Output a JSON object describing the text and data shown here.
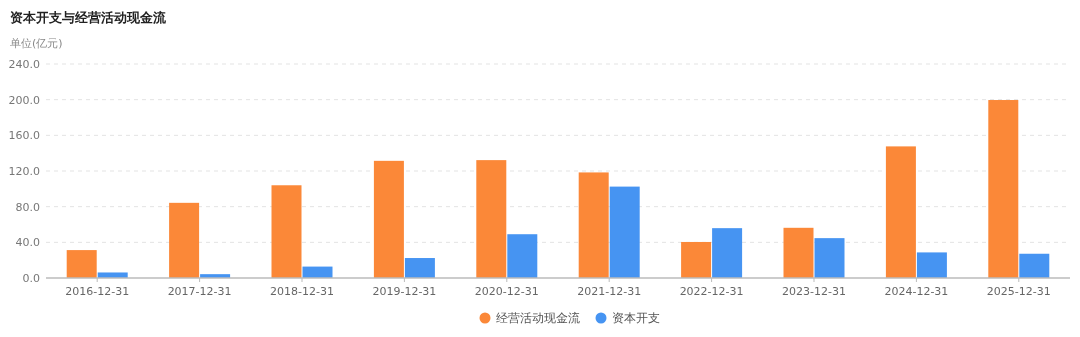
{
  "chart_data": {
    "type": "bar",
    "title": "资本开支与经营活动现金流",
    "ylabel": "单位(亿元)",
    "categories": [
      "2016-12-31",
      "2017-12-31",
      "2018-12-31",
      "2019-12-31",
      "2020-12-31",
      "2021-12-31",
      "2022-12-31",
      "2023-12-31",
      "2024-12-31",
      "2025-12-31"
    ],
    "series": [
      {
        "name": "经营活动现金流",
        "color": "#fb8838",
        "values": [
          31.3,
          84.3,
          104,
          131.4,
          132.2,
          118.4,
          40.4,
          56.3,
          147.6,
          199.6
        ]
      },
      {
        "name": "资本开支",
        "color": "#4694f2",
        "values": [
          6.2,
          4.3,
          12.8,
          22.4,
          49.1,
          102.5,
          55.9,
          44.7,
          28.7,
          27.2
        ]
      }
    ],
    "ylim": [
      0,
      240
    ],
    "yticks": [
      {
        "value": 0,
        "label": "0.0"
      },
      {
        "value": 40,
        "label": "40.0"
      },
      {
        "value": 80,
        "label": "80.0"
      },
      {
        "value": 120,
        "label": "120.0"
      },
      {
        "value": 160,
        "label": "160.0"
      },
      {
        "value": 200,
        "label": "200.0"
      },
      {
        "value": 240,
        "label": "240.0"
      }
    ],
    "grid": "y",
    "legend": "bottom"
  }
}
